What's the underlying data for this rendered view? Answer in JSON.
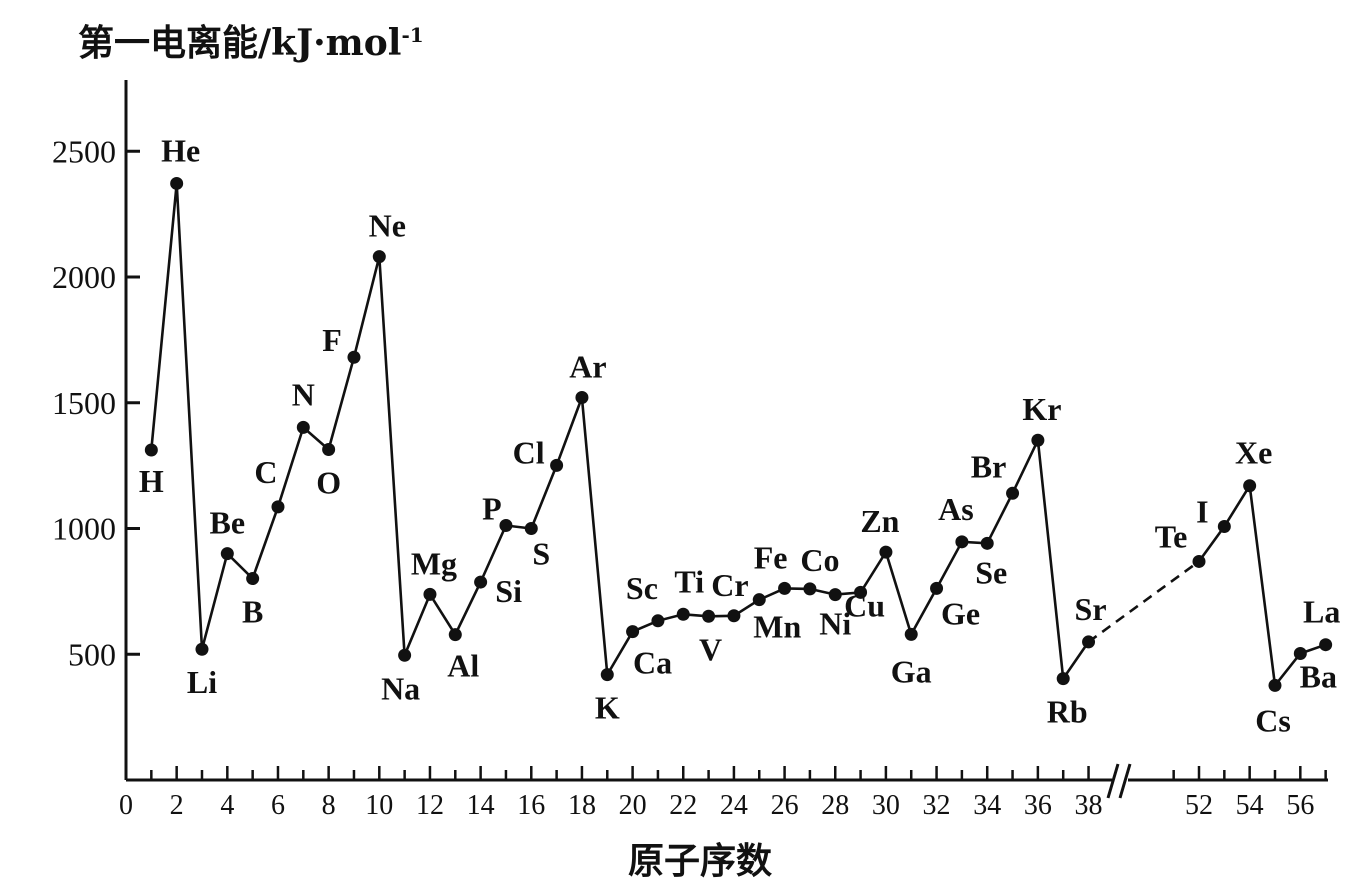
{
  "chart_data": {
    "type": "line",
    "title": "第一电离能/kJ·mol",
    "title_superscript": "-1",
    "xlabel": "原子序数",
    "ylabel": "第一电离能/kJ·mol-1",
    "ylim": [
      0,
      2750
    ],
    "y_ticks": [
      500,
      1000,
      1500,
      2000,
      2500
    ],
    "x_ticks_left": [
      0,
      2,
      4,
      6,
      8,
      10,
      12,
      14,
      16,
      18,
      20,
      22,
      24,
      26,
      28,
      30,
      32,
      34,
      36,
      38
    ],
    "x_ticks_right": [
      52,
      54,
      56
    ],
    "axis_break_between": [
      38,
      52
    ],
    "grid": false,
    "legend": "none",
    "series": [
      {
        "style": "solid",
        "points": [
          {
            "x": 1,
            "y": 1312,
            "label": "H"
          },
          {
            "x": 2,
            "y": 2372,
            "label": "He"
          },
          {
            "x": 3,
            "y": 520,
            "label": "Li"
          },
          {
            "x": 4,
            "y": 900,
            "label": "Be"
          },
          {
            "x": 5,
            "y": 801,
            "label": "B"
          },
          {
            "x": 6,
            "y": 1086,
            "label": "C"
          },
          {
            "x": 7,
            "y": 1402,
            "label": "N"
          },
          {
            "x": 8,
            "y": 1314,
            "label": "O"
          },
          {
            "x": 9,
            "y": 1681,
            "label": "F"
          },
          {
            "x": 10,
            "y": 2081,
            "label": "Ne"
          },
          {
            "x": 11,
            "y": 496,
            "label": "Na"
          },
          {
            "x": 12,
            "y": 738,
            "label": "Mg"
          },
          {
            "x": 13,
            "y": 578,
            "label": "Al"
          },
          {
            "x": 14,
            "y": 787,
            "label": "Si"
          },
          {
            "x": 15,
            "y": 1012,
            "label": "P"
          },
          {
            "x": 16,
            "y": 1000,
            "label": "S"
          },
          {
            "x": 17,
            "y": 1251,
            "label": "Cl"
          },
          {
            "x": 18,
            "y": 1521,
            "label": "Ar"
          },
          {
            "x": 19,
            "y": 419,
            "label": "K"
          },
          {
            "x": 20,
            "y": 590,
            "label": "Ca"
          },
          {
            "x": 21,
            "y": 633,
            "label": "Sc"
          },
          {
            "x": 22,
            "y": 659,
            "label": "Ti"
          },
          {
            "x": 23,
            "y": 651,
            "label": "V"
          },
          {
            "x": 24,
            "y": 653,
            "label": "Cr"
          },
          {
            "x": 25,
            "y": 717,
            "label": "Mn"
          },
          {
            "x": 26,
            "y": 762,
            "label": "Fe"
          },
          {
            "x": 27,
            "y": 760,
            "label": "Co"
          },
          {
            "x": 28,
            "y": 737,
            "label": "Ni"
          },
          {
            "x": 29,
            "y": 746,
            "label": "Cu"
          },
          {
            "x": 30,
            "y": 906,
            "label": "Zn"
          },
          {
            "x": 31,
            "y": 579,
            "label": "Ga"
          },
          {
            "x": 32,
            "y": 762,
            "label": "Ge"
          },
          {
            "x": 33,
            "y": 947,
            "label": "As"
          },
          {
            "x": 34,
            "y": 941,
            "label": "Se"
          },
          {
            "x": 35,
            "y": 1140,
            "label": "Br"
          },
          {
            "x": 36,
            "y": 1351,
            "label": "Kr"
          },
          {
            "x": 37,
            "y": 403,
            "label": "Rb"
          },
          {
            "x": 38,
            "y": 549,
            "label": "Sr"
          }
        ]
      },
      {
        "style": "dashed",
        "points": [
          {
            "x": 38,
            "y": 549
          },
          {
            "x": 52,
            "y": 869
          }
        ]
      },
      {
        "style": "solid",
        "points": [
          {
            "x": 52,
            "y": 869,
            "label": "Te"
          },
          {
            "x": 53,
            "y": 1008,
            "label": "I"
          },
          {
            "x": 54,
            "y": 1170,
            "label": "Xe"
          },
          {
            "x": 55,
            "y": 376,
            "label": "Cs"
          },
          {
            "x": 56,
            "y": 503,
            "label": "Ba"
          },
          {
            "x": 57,
            "y": 538,
            "label": "La"
          }
        ]
      }
    ]
  }
}
